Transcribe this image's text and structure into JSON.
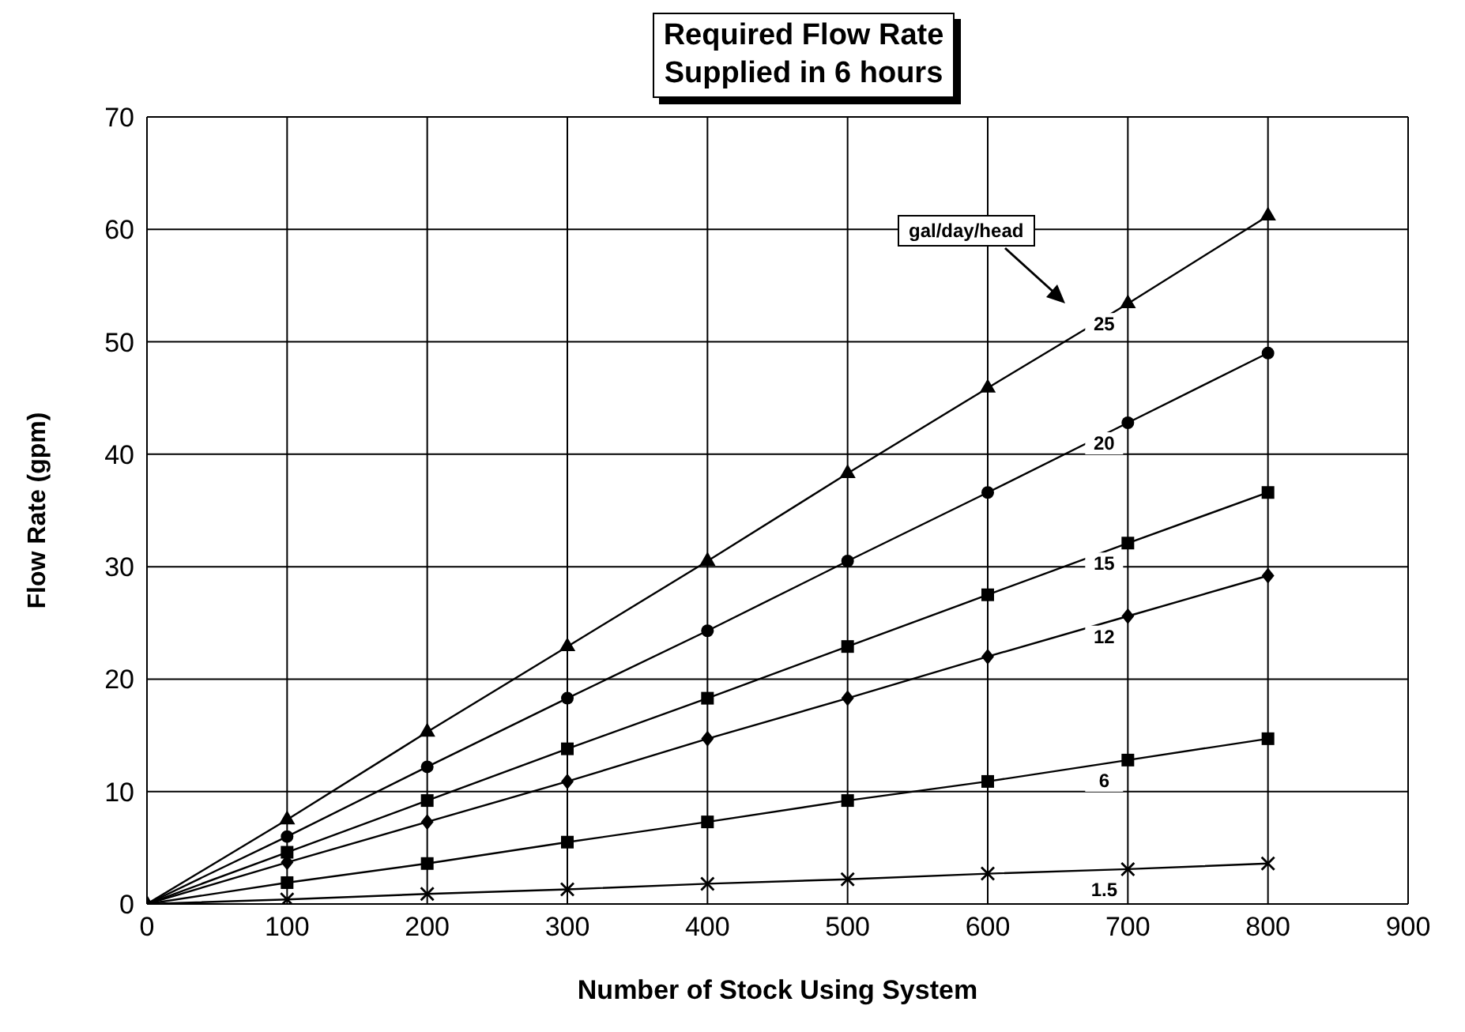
{
  "chart_data": {
    "type": "line",
    "title": "Required Flow Rate\nSupplied in 6 hours",
    "xlabel": "Number of Stock Using System",
    "ylabel": "Flow Rate (gpm)",
    "x": [
      0,
      100,
      200,
      300,
      400,
      500,
      600,
      700,
      800
    ],
    "series": [
      {
        "name": "25",
        "color": "#000000",
        "marker": "triangle",
        "values": [
          0,
          7.5,
          15.3,
          22.9,
          30.5,
          38.3,
          45.9,
          53.4,
          61.2
        ]
      },
      {
        "name": "20",
        "color": "#000000",
        "marker": "circle",
        "values": [
          0,
          6.0,
          12.2,
          18.3,
          24.3,
          30.5,
          36.6,
          42.8,
          49.0
        ]
      },
      {
        "name": "15",
        "color": "#000000",
        "marker": "square",
        "values": [
          0,
          4.6,
          9.2,
          13.8,
          18.3,
          22.9,
          27.5,
          32.1,
          36.6
        ]
      },
      {
        "name": "12",
        "color": "#000000",
        "marker": "diamond",
        "values": [
          0,
          3.7,
          7.3,
          10.9,
          14.7,
          18.3,
          22.0,
          25.6,
          29.2
        ]
      },
      {
        "name": "6",
        "color": "#000000",
        "marker": "square",
        "values": [
          0,
          1.9,
          3.6,
          5.5,
          7.3,
          9.2,
          10.9,
          12.8,
          14.7
        ]
      },
      {
        "name": "1.5",
        "color": "#000000",
        "marker": "cross",
        "values": [
          0,
          0.4,
          0.9,
          1.3,
          1.8,
          2.2,
          2.7,
          3.1,
          3.6
        ]
      }
    ],
    "annotations": [
      "gal/day/head"
    ],
    "xlim": [
      0,
      900
    ],
    "xticks": [
      0,
      100,
      200,
      300,
      400,
      500,
      600,
      700,
      800,
      900
    ],
    "ylim": [
      0,
      70
    ],
    "yticks": [
      0,
      10,
      20,
      30,
      40,
      50,
      60,
      70
    ],
    "grid": true,
    "legend": false,
    "line_style": "solid"
  }
}
